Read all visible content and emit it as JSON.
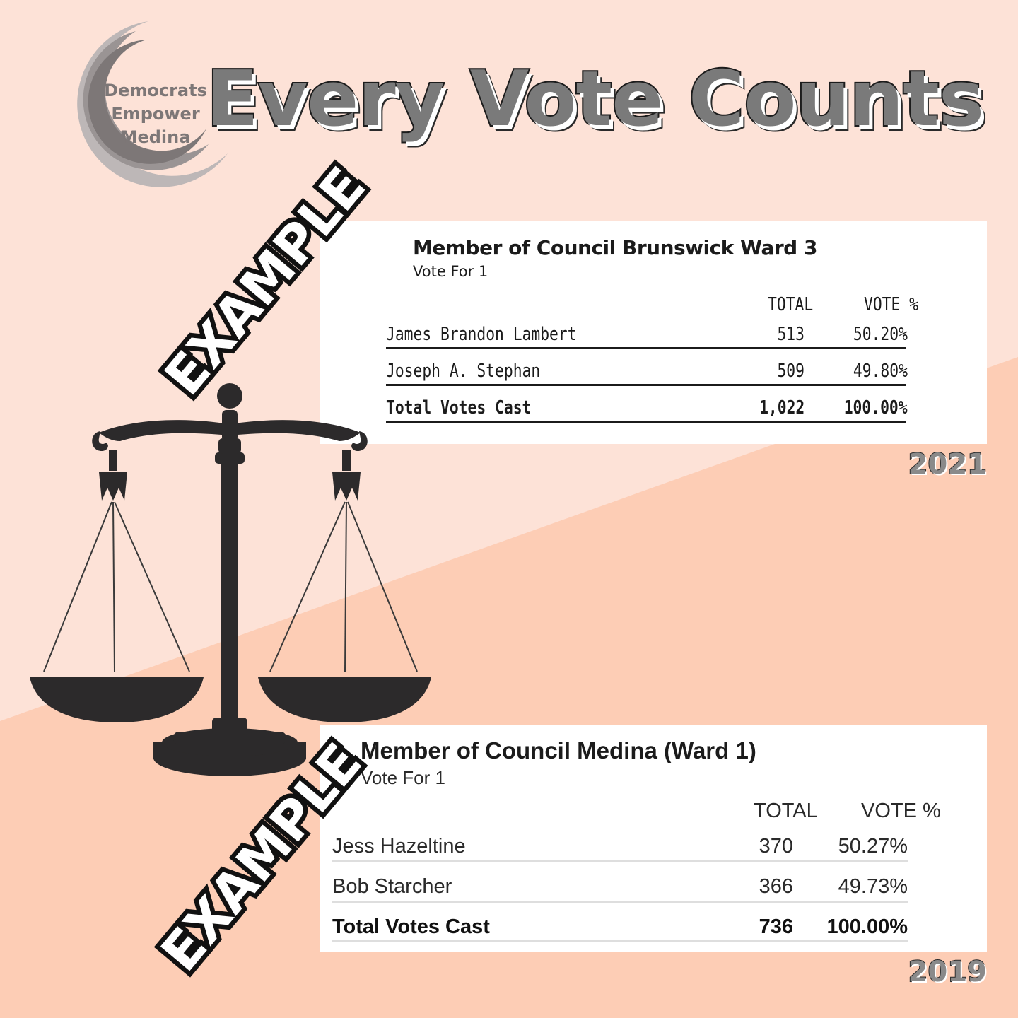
{
  "colors": {
    "background_top": "#fde2d7",
    "background_bottom": "#fdcdb5",
    "headline_fill": "#7a7a7a",
    "ink": "#1b1b1b"
  },
  "logo": {
    "icon": "crescent-logo-icon",
    "line1": "Democrats",
    "line2": "Empower",
    "line3": "Medina"
  },
  "headline": "Every Vote Counts",
  "stamps": {
    "top": "EXAMPLE",
    "bottom": "EXAMPLE"
  },
  "illustration": {
    "icon": "scales-of-justice-icon"
  },
  "results": [
    {
      "race": "Member of Council Brunswick Ward 3",
      "vote_for": "Vote For 1",
      "col_total": "TOTAL",
      "col_pct": "VOTE %",
      "rows": [
        {
          "name": "James Brandon Lambert",
          "total": "513",
          "pct": "50.20%"
        },
        {
          "name": "Joseph A. Stephan",
          "total": "509",
          "pct": "49.80%"
        }
      ],
      "summary": {
        "name": "Total Votes Cast",
        "total": "1,022",
        "pct": "100.00%"
      },
      "year": "2021"
    },
    {
      "race": "Member of Council Medina (Ward 1)",
      "vote_for": "Vote For 1",
      "col_total": "TOTAL",
      "col_pct": "VOTE %",
      "rows": [
        {
          "name": "Jess Hazeltine",
          "total": "370",
          "pct": "50.27%"
        },
        {
          "name": "Bob Starcher",
          "total": "366",
          "pct": "49.73%"
        }
      ],
      "summary": {
        "name": "Total Votes Cast",
        "total": "736",
        "pct": "100.00%"
      },
      "year": "2019"
    }
  ]
}
